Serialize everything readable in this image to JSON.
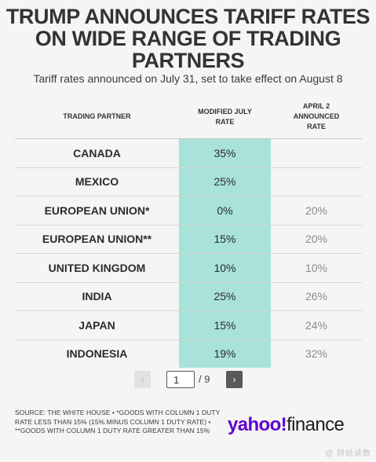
{
  "header": {
    "title_lines": [
      "TRUMP ANNOUNCES TARIFF RATES",
      "ON WIDE RANGE OF TRADING",
      "PARTNERS"
    ],
    "subtitle": "Tariff rates announced on July 31, set to take effect on August 8"
  },
  "table": {
    "headers": {
      "partner": "TRADING PARTNER",
      "modified": "MODIFIED JULY RATE",
      "april": "APRIL 2 ANNOUNCED RATE"
    },
    "rows": [
      {
        "partner": "CANADA",
        "modified": "35%",
        "april": ""
      },
      {
        "partner": "MEXICO",
        "modified": "25%",
        "april": ""
      },
      {
        "partner": "EUROPEAN UNION*",
        "modified": "0%",
        "april": "20%"
      },
      {
        "partner": "EUROPEAN UNION**",
        "modified": "15%",
        "april": "20%"
      },
      {
        "partner": "UNITED KINGDOM",
        "modified": "10%",
        "april": "10%"
      },
      {
        "partner": "INDIA",
        "modified": "25%",
        "april": "26%"
      },
      {
        "partner": "JAPAN",
        "modified": "15%",
        "april": "24%"
      },
      {
        "partner": "INDONESIA",
        "modified": "19%",
        "april": "32%"
      }
    ]
  },
  "pager": {
    "prev_glyph": "‹",
    "current_page": "1",
    "total": "/ 9",
    "next_glyph": "›"
  },
  "footer": {
    "source": "SOURCE: THE WHITE HOUSE • *GOODS WITH COLUMN 1 DUTY RATE LESS THAN 15% (15% MINUS COLUMN 1 DUTY RATE) • **GOODS WITH COLUMN 1 DUTY RATE GREATER THAN 15%",
    "brand_yahoo": "yahoo!",
    "brand_finance": "finance",
    "watermark": "@ 财经读数"
  },
  "colors": {
    "highlight_column": "#a8e2d8",
    "brand_purple": "#6001d2",
    "background": "#f5f5f5"
  },
  "icons": {
    "prev": "chevron-left-icon",
    "next": "chevron-right-icon"
  }
}
